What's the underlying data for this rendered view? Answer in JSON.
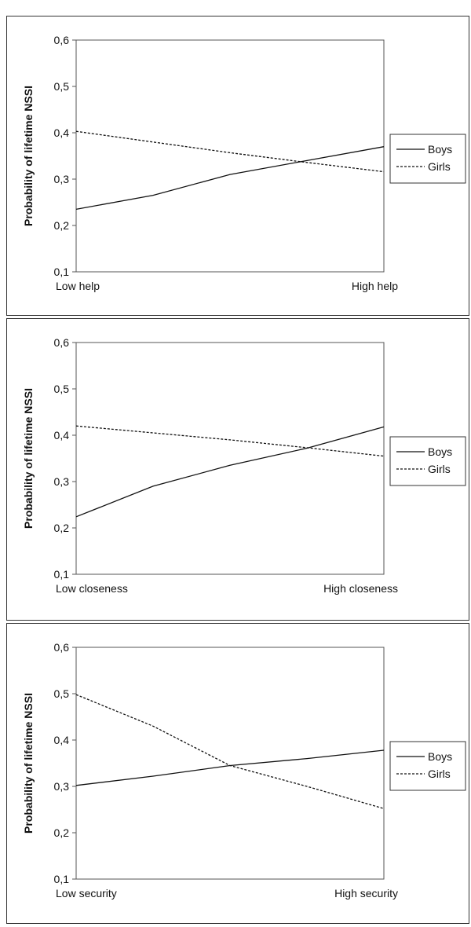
{
  "chart_data": [
    {
      "type": "line",
      "ylabel": "Probability of lifetime NSSI",
      "ylim": [
        0.1,
        0.6
      ],
      "yticks": [
        "0,1",
        "0,2",
        "0,3",
        "0,4",
        "0,5",
        "0,6"
      ],
      "xticks": [
        "Low help",
        "High help"
      ],
      "x": [
        0,
        0.25,
        0.5,
        0.75,
        1
      ],
      "series": [
        {
          "name": "Boys",
          "style": "solid",
          "values": [
            0.235,
            0.265,
            0.31,
            0.34,
            0.37
          ]
        },
        {
          "name": "Girls",
          "style": "dashed",
          "values": [
            0.403,
            0.38,
            0.357,
            0.336,
            0.316
          ]
        }
      ],
      "grid": false,
      "legend": "right",
      "color": "#111111"
    },
    {
      "type": "line",
      "ylabel": "Probability of lifetime NSSI",
      "ylim": [
        0.1,
        0.6
      ],
      "yticks": [
        "0,1",
        "0,2",
        "0,3",
        "0,4",
        "0,5",
        "0,6"
      ],
      "xticks": [
        "Low closeness",
        "High closeness"
      ],
      "x": [
        0,
        0.25,
        0.5,
        0.75,
        1
      ],
      "series": [
        {
          "name": "Boys",
          "style": "solid",
          "values": [
            0.224,
            0.29,
            0.335,
            0.372,
            0.418
          ]
        },
        {
          "name": "Girls",
          "style": "dashed",
          "values": [
            0.42,
            0.405,
            0.39,
            0.373,
            0.355
          ]
        }
      ],
      "grid": false,
      "legend": "right",
      "color": "#111111"
    },
    {
      "type": "line",
      "ylabel": "Probability of lifetime NSSI",
      "ylim": [
        0.1,
        0.6
      ],
      "yticks": [
        "0,1",
        "0,2",
        "0,3",
        "0,4",
        "0,5",
        "0,6"
      ],
      "xticks": [
        "Low security",
        "High security"
      ],
      "x": [
        0,
        0.25,
        0.5,
        0.75,
        1
      ],
      "series": [
        {
          "name": "Boys",
          "style": "solid",
          "values": [
            0.302,
            0.322,
            0.345,
            0.36,
            0.378
          ]
        },
        {
          "name": "Girls",
          "style": "dashed",
          "values": [
            0.498,
            0.43,
            0.345,
            0.3,
            0.252
          ]
        }
      ],
      "grid": false,
      "legend": "right",
      "color": "#111111"
    }
  ]
}
